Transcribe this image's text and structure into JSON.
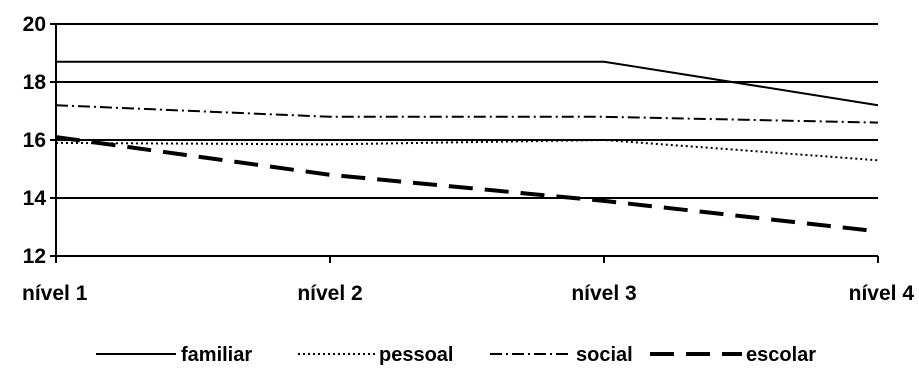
{
  "chart_data": {
    "type": "line",
    "categories": [
      "nível 1",
      "nível 2",
      "nível 3",
      "nível 4"
    ],
    "ylim": [
      12,
      20
    ],
    "yticks": [
      12,
      14,
      16,
      18,
      20
    ],
    "grid": true,
    "legend_position": "bottom",
    "series": [
      {
        "name": "familiar",
        "values": [
          18.7,
          18.7,
          18.7,
          17.2
        ],
        "style": "solid",
        "color": "#000000"
      },
      {
        "name": "pessoal",
        "values": [
          15.9,
          15.85,
          16.0,
          15.3
        ],
        "style": "dotted",
        "color": "#000000"
      },
      {
        "name": "social",
        "values": [
          17.2,
          16.8,
          16.8,
          16.6
        ],
        "style": "dashdot",
        "color": "#000000"
      },
      {
        "name": "escolar",
        "values": [
          16.1,
          14.8,
          13.9,
          12.85
        ],
        "style": "dashed",
        "color": "#000000"
      }
    ],
    "title": "",
    "xlabel": "",
    "ylabel": ""
  }
}
